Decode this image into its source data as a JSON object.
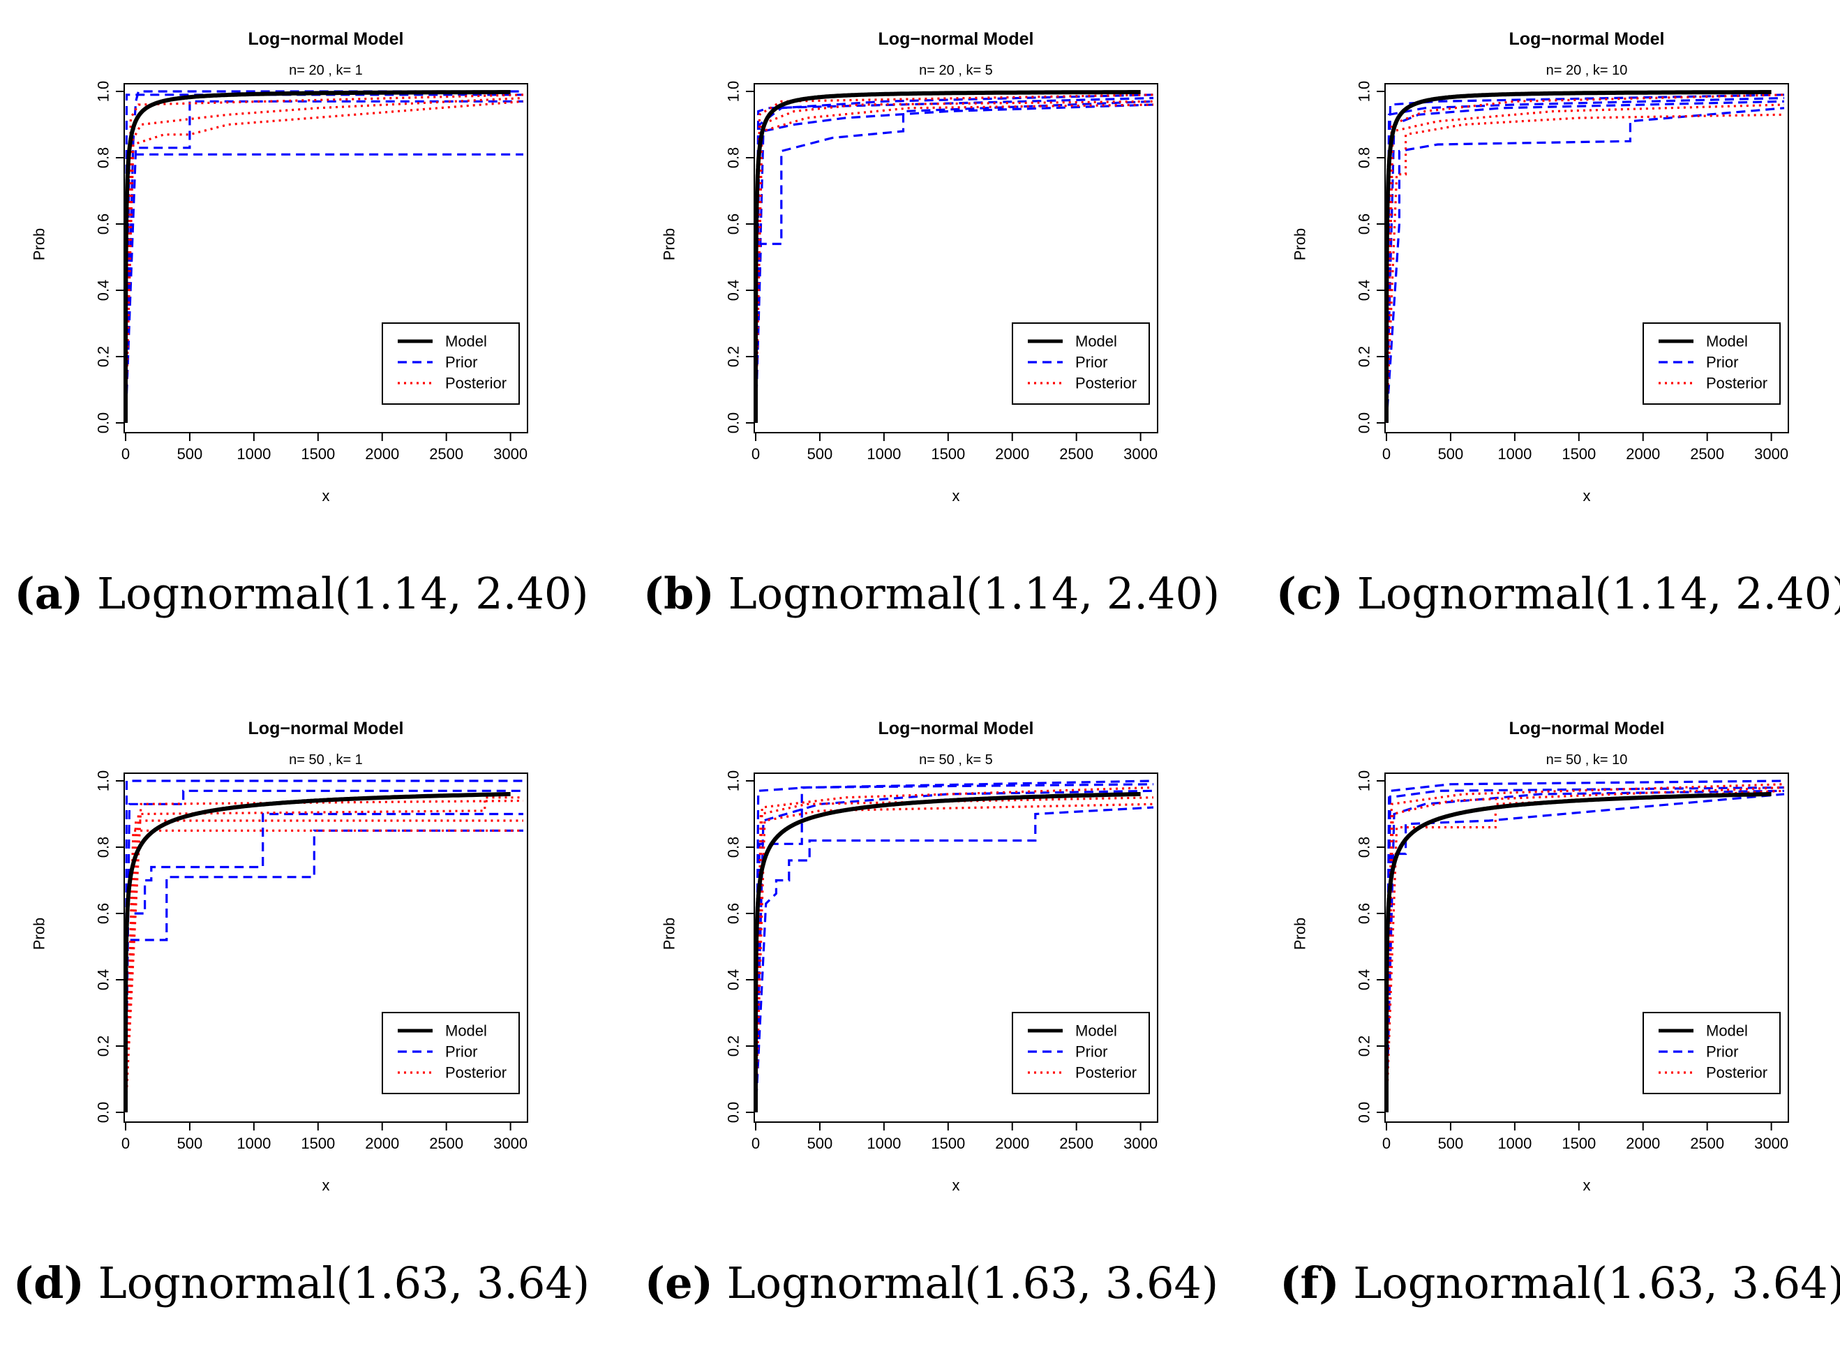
{
  "colors": {
    "model": "#000000",
    "prior": "#0000ff",
    "posterior": "#ff0000"
  },
  "chart_data": [
    {
      "type": "line",
      "panel": "a",
      "title": "Log−normal Model",
      "subtitle": "n= 20 , k= 1",
      "xlabel": "x",
      "ylabel": "Prob",
      "xlim": [
        0,
        3100
      ],
      "ylim": [
        0,
        1
      ],
      "xticks": [
        "0",
        "500",
        "1000",
        "1500",
        "2000",
        "2500",
        "3000"
      ],
      "yticks": [
        "0.0",
        "0.2",
        "0.4",
        "0.6",
        "0.8",
        "1.0"
      ],
      "legend": {
        "position": "bottom-right",
        "entries": [
          "Model",
          "Prior",
          "Posterior"
        ]
      },
      "model": {
        "meanlog": 1.14,
        "sdlog": 2.4,
        "x_max": 3000
      },
      "prior": [
        [
          [
            0,
            0
          ],
          [
            8,
            0.99
          ],
          [
            3100,
            0.99
          ]
        ],
        [
          [
            0,
            0
          ],
          [
            30,
            0.82
          ],
          [
            60,
            0.81
          ],
          [
            3100,
            0.81
          ]
        ],
        [
          [
            0,
            0
          ],
          [
            60,
            0.85
          ],
          [
            80,
            0.97
          ],
          [
            100,
            1.0
          ],
          [
            3100,
            1.0
          ]
        ],
        [
          [
            0,
            0
          ],
          [
            80,
            0.83
          ],
          [
            500,
            0.83
          ],
          [
            500,
            0.97
          ],
          [
            3100,
            0.97
          ]
        ]
      ],
      "posterior": [
        [
          [
            0,
            0
          ],
          [
            40,
            0.92
          ],
          [
            100,
            0.96
          ],
          [
            3100,
            0.99
          ]
        ],
        [
          [
            0,
            0
          ],
          [
            50,
            0.85
          ],
          [
            120,
            0.9
          ],
          [
            800,
            0.93
          ],
          [
            1500,
            0.95
          ],
          [
            3100,
            0.98
          ]
        ],
        [
          [
            0,
            0
          ],
          [
            60,
            0.84
          ],
          [
            300,
            0.87
          ],
          [
            500,
            0.87
          ],
          [
            800,
            0.9
          ],
          [
            3100,
            0.97
          ]
        ]
      ],
      "caption": {
        "letter": "(a)",
        "text": "Lognormal(1.14, 2.40)"
      }
    },
    {
      "type": "line",
      "panel": "b",
      "title": "Log−normal Model",
      "subtitle": "n= 20 , k= 5",
      "xlabel": "x",
      "ylabel": "Prob",
      "xlim": [
        0,
        3100
      ],
      "ylim": [
        0,
        1
      ],
      "xticks": [
        "0",
        "500",
        "1000",
        "1500",
        "2000",
        "2500",
        "3000"
      ],
      "yticks": [
        "0.0",
        "0.2",
        "0.4",
        "0.6",
        "0.8",
        "1.0"
      ],
      "legend": {
        "position": "bottom-right",
        "entries": [
          "Model",
          "Prior",
          "Posterior"
        ]
      },
      "model": {
        "meanlog": 1.14,
        "sdlog": 2.4,
        "x_max": 3000
      },
      "prior": [
        [
          [
            0,
            0
          ],
          [
            40,
            0.54
          ],
          [
            200,
            0.54
          ],
          [
            200,
            0.82
          ],
          [
            600,
            0.86
          ],
          [
            1150,
            0.88
          ],
          [
            1150,
            0.94
          ],
          [
            3100,
            0.97
          ]
        ],
        [
          [
            0,
            0
          ],
          [
            20,
            0.94
          ],
          [
            100,
            0.95
          ],
          [
            3100,
            0.98
          ]
        ],
        [
          [
            0,
            0
          ],
          [
            60,
            0.88
          ],
          [
            300,
            0.9
          ],
          [
            700,
            0.92
          ],
          [
            1500,
            0.94
          ],
          [
            3100,
            0.96
          ]
        ],
        [
          [
            0,
            0
          ],
          [
            30,
            0.9
          ],
          [
            200,
            0.95
          ],
          [
            1000,
            0.97
          ],
          [
            3100,
            0.99
          ]
        ]
      ],
      "posterior": [
        [
          [
            0,
            0
          ],
          [
            30,
            0.93
          ],
          [
            200,
            0.97
          ],
          [
            3100,
            0.99
          ]
        ],
        [
          [
            0,
            0
          ],
          [
            40,
            0.9
          ],
          [
            300,
            0.94
          ],
          [
            800,
            0.96
          ],
          [
            3100,
            0.97
          ]
        ],
        [
          [
            0,
            0
          ],
          [
            50,
            0.88
          ],
          [
            400,
            0.92
          ],
          [
            1200,
            0.95
          ],
          [
            3100,
            0.96
          ]
        ]
      ],
      "caption": {
        "letter": "(b)",
        "text": "Lognormal(1.14, 2.40)"
      }
    },
    {
      "type": "line",
      "panel": "c",
      "title": "Log−normal Model",
      "subtitle": "n= 20 , k= 10",
      "xlabel": "x",
      "ylabel": "Prob",
      "xlim": [
        0,
        3100
      ],
      "ylim": [
        0,
        1
      ],
      "xticks": [
        "0",
        "500",
        "1000",
        "1500",
        "2000",
        "2500",
        "3000"
      ],
      "yticks": [
        "0.0",
        "0.2",
        "0.4",
        "0.6",
        "0.8",
        "1.0"
      ],
      "legend": {
        "position": "bottom-right",
        "entries": [
          "Model",
          "Prior",
          "Posterior"
        ]
      },
      "model": {
        "meanlog": 1.14,
        "sdlog": 2.4,
        "x_max": 3000
      },
      "prior": [
        [
          [
            0,
            0
          ],
          [
            100,
            0.6
          ],
          [
            100,
            0.82
          ],
          [
            400,
            0.84
          ],
          [
            1900,
            0.85
          ],
          [
            1900,
            0.91
          ],
          [
            3100,
            0.95
          ]
        ],
        [
          [
            0,
            0
          ],
          [
            20,
            0.93
          ],
          [
            300,
            0.95
          ],
          [
            1000,
            0.96
          ],
          [
            3100,
            0.98
          ]
        ],
        [
          [
            0,
            0
          ],
          [
            60,
            0.9
          ],
          [
            250,
            0.93
          ],
          [
            900,
            0.95
          ],
          [
            3100,
            0.97
          ]
        ],
        [
          [
            0,
            0
          ],
          [
            30,
            0.96
          ],
          [
            400,
            0.97
          ],
          [
            3100,
            0.99
          ]
        ]
      ],
      "posterior": [
        [
          [
            0,
            0
          ],
          [
            40,
            0.9
          ],
          [
            300,
            0.94
          ],
          [
            1000,
            0.97
          ],
          [
            3100,
            0.99
          ]
        ],
        [
          [
            0,
            0
          ],
          [
            80,
            0.75
          ],
          [
            150,
            0.75
          ],
          [
            150,
            0.87
          ],
          [
            600,
            0.9
          ],
          [
            1500,
            0.92
          ],
          [
            3100,
            0.93
          ]
        ],
        [
          [
            0,
            0
          ],
          [
            50,
            0.88
          ],
          [
            400,
            0.91
          ],
          [
            1300,
            0.94
          ],
          [
            3100,
            0.96
          ]
        ]
      ],
      "caption": {
        "letter": "(c)",
        "text": "Lognormal(1.14, 2.40)"
      }
    },
    {
      "type": "line",
      "panel": "d",
      "title": "Log−normal Model",
      "subtitle": "n= 50 , k= 1",
      "xlabel": "x",
      "ylabel": "Prob",
      "xlim": [
        0,
        3100
      ],
      "ylim": [
        0,
        1
      ],
      "xticks": [
        "0",
        "500",
        "1000",
        "1500",
        "2000",
        "2500",
        "3000"
      ],
      "yticks": [
        "0.0",
        "0.2",
        "0.4",
        "0.6",
        "0.8",
        "1.0"
      ],
      "legend": {
        "position": "bottom-right",
        "entries": [
          "Model",
          "Prior",
          "Posterior"
        ]
      },
      "model": {
        "meanlog": 1.63,
        "sdlog": 3.64,
        "x_max": 3000
      },
      "prior": [
        [
          [
            0,
            0
          ],
          [
            10,
            0.52
          ],
          [
            320,
            0.52
          ],
          [
            320,
            0.71
          ],
          [
            1470,
            0.71
          ],
          [
            1470,
            0.85
          ],
          [
            3100,
            0.85
          ]
        ],
        [
          [
            0,
            0
          ],
          [
            20,
            0.6
          ],
          [
            150,
            0.6
          ],
          [
            150,
            0.7
          ],
          [
            200,
            0.7
          ],
          [
            200,
            0.74
          ],
          [
            1070,
            0.74
          ],
          [
            1070,
            0.9
          ],
          [
            3100,
            0.9
          ]
        ],
        [
          [
            0,
            0
          ],
          [
            8,
            1.0
          ],
          [
            3100,
            1.0
          ]
        ],
        [
          [
            0,
            0
          ],
          [
            30,
            0.93
          ],
          [
            450,
            0.93
          ],
          [
            450,
            0.97
          ],
          [
            3100,
            0.97
          ]
        ]
      ],
      "posterior": [
        [
          [
            0,
            0
          ],
          [
            60,
            0.85
          ],
          [
            3100,
            0.85
          ]
        ],
        [
          [
            0,
            0
          ],
          [
            80,
            0.88
          ],
          [
            3100,
            0.88
          ]
        ],
        [
          [
            0,
            0
          ],
          [
            100,
            0.9
          ],
          [
            2800,
            0.91
          ],
          [
            2800,
            0.95
          ],
          [
            3100,
            0.95
          ]
        ],
        [
          [
            0,
            0
          ],
          [
            120,
            0.93
          ],
          [
            3100,
            0.94
          ]
        ]
      ],
      "caption": {
        "letter": "(d)",
        "text": "Lognormal(1.63, 3.64)"
      }
    },
    {
      "type": "line",
      "panel": "e",
      "title": "Log−normal Model",
      "subtitle": "n= 50 , k= 5",
      "xlabel": "x",
      "ylabel": "Prob",
      "xlim": [
        0,
        3100
      ],
      "ylim": [
        0,
        1
      ],
      "xticks": [
        "0",
        "500",
        "1000",
        "1500",
        "2000",
        "2500",
        "3000"
      ],
      "yticks": [
        "0.0",
        "0.2",
        "0.4",
        "0.6",
        "0.8",
        "1.0"
      ],
      "legend": {
        "position": "bottom-right",
        "entries": [
          "Model",
          "Prior",
          "Posterior"
        ]
      },
      "model": {
        "meanlog": 1.63,
        "sdlog": 3.64,
        "x_max": 3000
      },
      "prior": [
        [
          [
            0,
            0
          ],
          [
            80,
            0.63
          ],
          [
            160,
            0.66
          ],
          [
            160,
            0.7
          ],
          [
            260,
            0.7
          ],
          [
            260,
            0.76
          ],
          [
            420,
            0.76
          ],
          [
            420,
            0.82
          ],
          [
            2180,
            0.82
          ],
          [
            2180,
            0.9
          ],
          [
            3100,
            0.92
          ]
        ],
        [
          [
            0,
            0
          ],
          [
            30,
            0.81
          ],
          [
            360,
            0.81
          ],
          [
            360,
            0.98
          ],
          [
            3100,
            0.99
          ]
        ],
        [
          [
            0,
            0
          ],
          [
            20,
            0.97
          ],
          [
            400,
            0.98
          ],
          [
            3100,
            1.0
          ]
        ],
        [
          [
            0,
            0
          ],
          [
            60,
            0.88
          ],
          [
            500,
            0.93
          ],
          [
            1500,
            0.96
          ],
          [
            3100,
            0.97
          ]
        ]
      ],
      "posterior": [
        [
          [
            0,
            0
          ],
          [
            40,
            0.9
          ],
          [
            400,
            0.93
          ],
          [
            3100,
            0.95
          ]
        ],
        [
          [
            0,
            0
          ],
          [
            50,
            0.92
          ],
          [
            700,
            0.95
          ],
          [
            3100,
            0.98
          ]
        ],
        [
          [
            0,
            0
          ],
          [
            70,
            0.88
          ],
          [
            500,
            0.91
          ],
          [
            3100,
            0.93
          ]
        ]
      ],
      "caption": {
        "letter": "(e)",
        "text": "Lognormal(1.63, 3.64)"
      }
    },
    {
      "type": "line",
      "panel": "f",
      "title": "Log−normal Model",
      "subtitle": "n= 50 , k= 10",
      "xlabel": "x",
      "ylabel": "Prob",
      "xlim": [
        0,
        3100
      ],
      "ylim": [
        0,
        1
      ],
      "xticks": [
        "0",
        "500",
        "1000",
        "1500",
        "2000",
        "2500",
        "3000"
      ],
      "yticks": [
        "0.0",
        "0.2",
        "0.4",
        "0.6",
        "0.8",
        "1.0"
      ],
      "legend": {
        "position": "bottom-right",
        "entries": [
          "Model",
          "Prior",
          "Posterior"
        ]
      },
      "model": {
        "meanlog": 1.63,
        "sdlog": 3.64,
        "x_max": 3000
      },
      "prior": [
        [
          [
            0,
            0
          ],
          [
            40,
            0.78
          ],
          [
            150,
            0.78
          ],
          [
            150,
            0.87
          ],
          [
            800,
            0.88
          ],
          [
            3100,
            0.96
          ]
        ],
        [
          [
            0,
            0
          ],
          [
            20,
            0.95
          ],
          [
            400,
            0.97
          ],
          [
            3100,
            0.98
          ]
        ],
        [
          [
            0,
            0
          ],
          [
            60,
            0.9
          ],
          [
            300,
            0.93
          ],
          [
            1200,
            0.96
          ],
          [
            3100,
            0.97
          ]
        ],
        [
          [
            0,
            0
          ],
          [
            30,
            0.97
          ],
          [
            500,
            0.99
          ],
          [
            3100,
            1.0
          ]
        ]
      ],
      "posterior": [
        [
          [
            0,
            0
          ],
          [
            40,
            0.93
          ],
          [
            600,
            0.96
          ],
          [
            3100,
            0.99
          ]
        ],
        [
          [
            0,
            0
          ],
          [
            80,
            0.86
          ],
          [
            850,
            0.86
          ],
          [
            850,
            0.93
          ],
          [
            3100,
            0.97
          ]
        ],
        [
          [
            0,
            0
          ],
          [
            50,
            0.9
          ],
          [
            500,
            0.94
          ],
          [
            3100,
            0.98
          ]
        ]
      ],
      "caption": {
        "letter": "(f)",
        "text": "Lognormal(1.63, 3.64)"
      }
    }
  ]
}
